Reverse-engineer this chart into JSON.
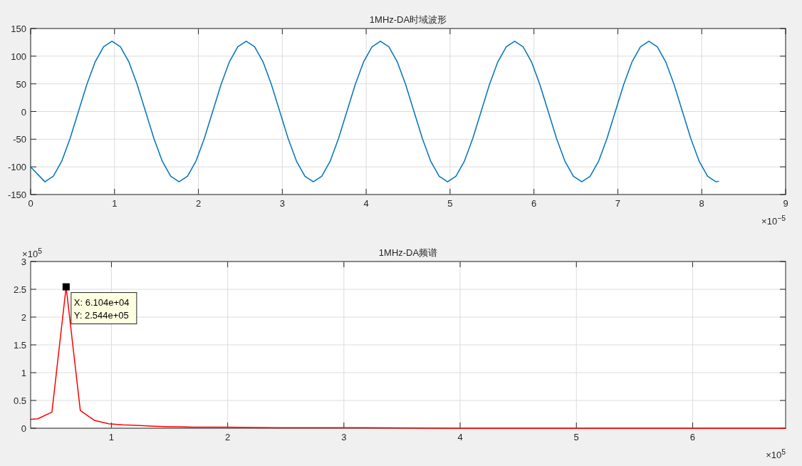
{
  "chart_data": [
    {
      "type": "line",
      "title": "1MHz-DA时域波形",
      "x": [
        0,
        0.17,
        0.27,
        0.37,
        0.47,
        0.57,
        0.67,
        0.77,
        0.87,
        0.97,
        1.07,
        1.17,
        1.27,
        1.37,
        1.47,
        1.57,
        1.67,
        1.77,
        1.87,
        1.97,
        2.07,
        2.17,
        2.27,
        2.37,
        2.47,
        2.57,
        2.67,
        2.77,
        2.87,
        2.97,
        3.07,
        3.17,
        3.27,
        3.37,
        3.47,
        3.57,
        3.67,
        3.77,
        3.87,
        3.97,
        4.07,
        4.17,
        4.27,
        4.37,
        4.47,
        4.57,
        4.67,
        4.77,
        4.87,
        4.97,
        5.07,
        5.17,
        5.27,
        5.37,
        5.47,
        5.57,
        5.67,
        5.77,
        5.87,
        5.97,
        6.07,
        6.17,
        6.27,
        6.37,
        6.47,
        6.57,
        6.67,
        6.77,
        6.87,
        6.97,
        7.07,
        7.17,
        7.27,
        7.37,
        7.47,
        7.57,
        7.67,
        7.77,
        7.87,
        7.97,
        8.07,
        8.17,
        8.2
      ],
      "series": [
        {
          "color": "#0072bd",
          "values": [
            -100,
            -127,
            -117,
            -90,
            -49,
            0,
            49,
            90,
            117,
            127,
            117,
            90,
            49,
            0,
            -49,
            -90,
            -117,
            -127,
            -117,
            -90,
            -49,
            0,
            49,
            90,
            117,
            127,
            117,
            90,
            49,
            0,
            -49,
            -90,
            -117,
            -127,
            -117,
            -90,
            -49,
            0,
            49,
            90,
            117,
            127,
            117,
            90,
            49,
            0,
            -49,
            -90,
            -117,
            -127,
            -117,
            -90,
            -49,
            0,
            49,
            90,
            117,
            127,
            117,
            90,
            49,
            0,
            -49,
            -90,
            -117,
            -127,
            -117,
            -90,
            -49,
            0,
            49,
            90,
            117,
            127,
            117,
            90,
            49,
            0,
            -49,
            -90,
            -117,
            -127,
            -126
          ]
        }
      ],
      "xlim": [
        0,
        9
      ],
      "ylim": [
        -150,
        150
      ],
      "xticks": [
        0,
        1,
        2,
        3,
        4,
        5,
        6,
        7,
        8,
        9
      ],
      "yticks": [
        -150,
        -100,
        -50,
        0,
        50,
        100,
        150
      ],
      "grid": true,
      "annotations": [
        "×10$^{−5}$"
      ]
    },
    {
      "type": "line",
      "title": "1MHz-DA频谱",
      "x": [
        0.305,
        0.3662,
        0.4883,
        0.6104,
        0.7324,
        0.8545,
        0.9766,
        1.099,
        1.221,
        1.343,
        1.465,
        1.709,
        1.953,
        2.441,
        3,
        4,
        5,
        6.8
      ],
      "series": [
        {
          "color": "#ff0000",
          "values": [
            0.16,
            0.17,
            0.29,
            2.544,
            0.32,
            0.14,
            0.08,
            0.06,
            0.05,
            0.04,
            0.03,
            0.02,
            0.02,
            0.01,
            0.01,
            0,
            0,
            0
          ]
        }
      ],
      "xlim": [
        0.305,
        6.8
      ],
      "ylim": [
        0,
        3
      ],
      "xticks": [
        1,
        2,
        3,
        4,
        5,
        6
      ],
      "yticks": [
        0,
        0.5,
        1,
        1.5,
        2,
        2.5,
        3
      ],
      "grid": true,
      "annotations": [
        "×10$^{5}$",
        "×10$^{5}$",
        {
          "text": "X: 6.104e+04\nY: 2.544e+05",
          "x": 0.6104,
          "y": 2.544
        }
      ]
    }
  ]
}
